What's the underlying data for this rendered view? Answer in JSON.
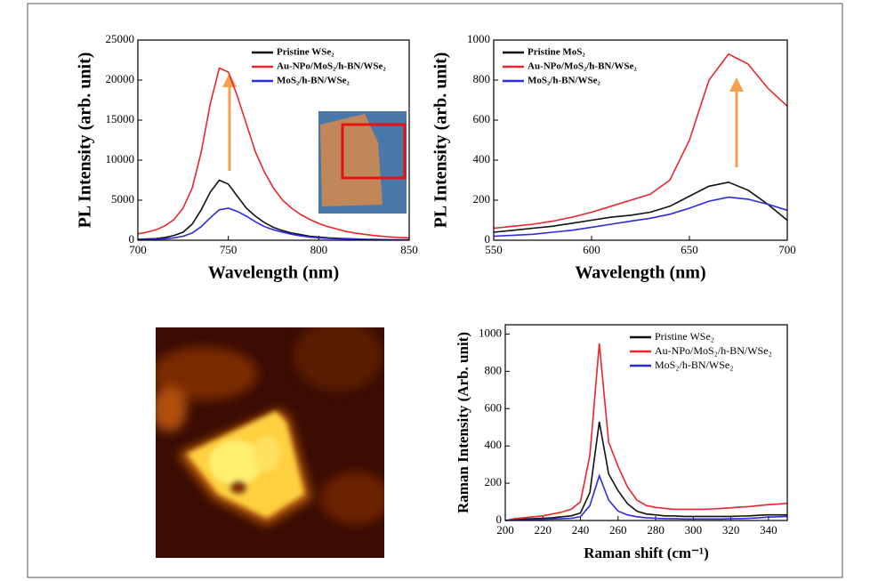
{
  "chart_data": [
    {
      "type": "line",
      "ylabel": "PL Intensity (arb. unit)",
      "xlabel": "Wavelength (nm)",
      "x": [
        700,
        705,
        710,
        715,
        720,
        725,
        730,
        735,
        740,
        745,
        750,
        755,
        760,
        765,
        770,
        775,
        780,
        785,
        790,
        795,
        800,
        805,
        810,
        815,
        820,
        825,
        830,
        835,
        840,
        845,
        850
      ],
      "xlim": [
        700,
        850
      ],
      "xticks": [
        700,
        750,
        800,
        850
      ],
      "ylim": [
        0,
        25000
      ],
      "yticks": [
        0,
        5000,
        10000,
        15000,
        20000,
        25000
      ],
      "legend": "upper right",
      "series": [
        {
          "name": "Pristine WSe₂",
          "color": "#111111",
          "values": [
            100,
            150,
            200,
            350,
            600,
            1000,
            2000,
            3800,
            6000,
            7500,
            7000,
            5500,
            4000,
            3000,
            2200,
            1600,
            1200,
            900,
            700,
            500,
            400,
            300,
            250,
            200,
            150,
            120,
            100,
            80,
            60,
            50,
            40
          ]
        },
        {
          "name": "Au-NPo/MoS₂/h-BN/WSe₂",
          "color": "#e8262b",
          "values": [
            800,
            1000,
            1300,
            1800,
            2600,
            4000,
            6500,
            11000,
            17000,
            21500,
            21000,
            18000,
            14500,
            11000,
            8500,
            6500,
            5000,
            4000,
            3200,
            2600,
            2100,
            1700,
            1400,
            1100,
            900,
            750,
            600,
            500,
            400,
            350,
            300
          ]
        },
        {
          "name": "MoS₂/h-BN/WSe₂",
          "color": "#2b2be0",
          "values": [
            50,
            80,
            120,
            180,
            300,
            500,
            900,
            1700,
            2800,
            3800,
            4000,
            3600,
            3000,
            2300,
            1700,
            1300,
            1000,
            750,
            550,
            400,
            300,
            230,
            180,
            140,
            110,
            90,
            70,
            60,
            50,
            40,
            30
          ]
        }
      ]
    },
    {
      "type": "line",
      "ylabel": "PL Intensity (arb. unit)",
      "xlabel": "Wavelength (nm)",
      "x": [
        550,
        560,
        570,
        580,
        590,
        600,
        610,
        620,
        630,
        640,
        650,
        660,
        670,
        680,
        690,
        700
      ],
      "xlim": [
        550,
        700
      ],
      "xticks": [
        550,
        600,
        650,
        700
      ],
      "ylim": [
        0,
        1000
      ],
      "yticks": [
        0,
        200,
        400,
        600,
        800,
        1000
      ],
      "legend": "upper left",
      "series": [
        {
          "name": "Pristine MoS₂",
          "color": "#111111",
          "values": [
            40,
            50,
            60,
            70,
            85,
            100,
            115,
            125,
            140,
            170,
            220,
            270,
            290,
            250,
            180,
            100
          ]
        },
        {
          "name": "Au-NPo/MoS₂/h-BN/WSe₂",
          "color": "#e8262b",
          "values": [
            60,
            70,
            80,
            95,
            115,
            140,
            170,
            200,
            230,
            300,
            500,
            800,
            930,
            880,
            760,
            670
          ]
        },
        {
          "name": "MoS₂/h-BN/WSe₂",
          "color": "#2b2be0",
          "values": [
            20,
            25,
            30,
            40,
            50,
            65,
            80,
            95,
            110,
            130,
            160,
            195,
            215,
            205,
            180,
            150
          ]
        }
      ]
    },
    {
      "type": "line",
      "ylabel": "Raman Intensity (Arb. unit)",
      "xlabel": "Raman shift (cm⁻¹)",
      "x": [
        200,
        205,
        210,
        215,
        220,
        225,
        230,
        235,
        240,
        245,
        250,
        255,
        260,
        265,
        270,
        275,
        280,
        285,
        290,
        295,
        300,
        305,
        310,
        315,
        320,
        325,
        330,
        335,
        340,
        345,
        350
      ],
      "xlim": [
        200,
        350
      ],
      "xticks": [
        200,
        220,
        240,
        260,
        280,
        300,
        320,
        340
      ],
      "ylim": [
        0,
        1050
      ],
      "yticks": [
        0,
        200,
        400,
        600,
        800,
        1000
      ],
      "legend": "upper right",
      "series": [
        {
          "name": "Pristine WSe₂",
          "color": "#111111",
          "values": [
            0,
            5,
            8,
            10,
            12,
            15,
            20,
            25,
            40,
            150,
            530,
            250,
            160,
            90,
            50,
            35,
            30,
            25,
            25,
            22,
            22,
            22,
            22,
            22,
            22,
            24,
            25,
            28,
            30,
            30,
            30
          ]
        },
        {
          "name": "Au-NPo/MoS₂/h-BN/WSe₂",
          "color": "#e8262b",
          "values": [
            0,
            10,
            15,
            20,
            25,
            35,
            45,
            60,
            100,
            350,
            950,
            420,
            290,
            180,
            110,
            80,
            70,
            65,
            60,
            60,
            60,
            60,
            62,
            65,
            68,
            72,
            75,
            80,
            85,
            88,
            92
          ]
        },
        {
          "name": "MoS₂/h-BN/WSe₂",
          "color": "#2b2be0",
          "values": [
            0,
            3,
            4,
            5,
            6,
            8,
            10,
            12,
            20,
            80,
            240,
            110,
            50,
            30,
            20,
            15,
            12,
            10,
            10,
            8,
            8,
            8,
            8,
            8,
            10,
            10,
            12,
            15,
            18,
            20,
            22
          ]
        }
      ]
    }
  ]
}
